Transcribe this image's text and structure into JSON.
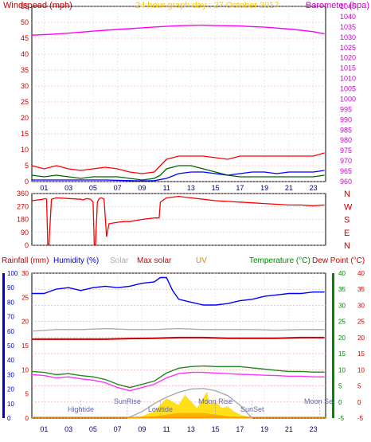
{
  "chart_data": [
    {
      "type": "line",
      "title": "24 hour graph day : 27 October 2017",
      "ylabel_left": "Windspeed (mph)",
      "ylabel_right": "Barometer (hpa)",
      "xlim": [
        0,
        24
      ],
      "x_ticks": [
        "01",
        "03",
        "05",
        "07",
        "09",
        "11",
        "13",
        "15",
        "17",
        "19",
        "21",
        "23"
      ],
      "ylim_left": [
        0,
        55
      ],
      "y_ticks_left": [
        "0",
        "5",
        "10",
        "15",
        "20",
        "25",
        "30",
        "35",
        "40",
        "45",
        "50",
        "55"
      ],
      "ylim_right": [
        960,
        1045
      ],
      "y_ticks_right": [
        "960",
        "965",
        "970",
        "975",
        "980",
        "985",
        "990",
        "995",
        "1000",
        "1005",
        "1010",
        "1015",
        "1020",
        "1025",
        "1030",
        "1035",
        "1040",
        "1045"
      ],
      "series": [
        {
          "key": "gust",
          "color": "#ff0000",
          "axis": "left",
          "x": [
            0,
            1,
            2,
            3,
            4,
            5,
            6,
            7,
            8,
            9,
            10,
            10.5,
            11,
            12,
            13,
            14,
            15,
            16,
            17,
            18,
            19,
            20,
            21,
            22,
            23,
            23.9
          ],
          "y": [
            5,
            4,
            5,
            4,
            3.5,
            4,
            4.5,
            4,
            3,
            2.5,
            3,
            5,
            7,
            8,
            8,
            8,
            7.5,
            7,
            8,
            8,
            8,
            8,
            8,
            8,
            8,
            9
          ]
        },
        {
          "key": "wind",
          "color": "#006600",
          "axis": "left",
          "x": [
            0,
            1,
            2,
            3,
            4,
            5,
            6,
            7,
            8,
            9,
            10,
            10.5,
            11,
            12,
            13,
            14,
            15,
            16,
            17,
            18,
            19,
            20,
            21,
            22,
            23,
            23.9
          ],
          "y": [
            2,
            1.5,
            2,
            1.5,
            1,
            1.5,
            1.5,
            1.5,
            1,
            0.5,
            1,
            2,
            4,
            5,
            5,
            4,
            3,
            2,
            1.5,
            1.5,
            1.5,
            1.5,
            1.5,
            1.5,
            1.5,
            2
          ]
        },
        {
          "key": "avg",
          "color": "#0000ff",
          "axis": "left",
          "x": [
            0,
            2,
            4,
            6,
            8,
            9,
            10,
            11,
            12,
            13,
            14,
            15,
            16,
            17,
            18,
            19,
            20,
            21,
            22,
            23,
            23.9
          ],
          "y": [
            0.5,
            0.5,
            0.5,
            0.5,
            0.3,
            0.2,
            0.3,
            1,
            2.5,
            3,
            3,
            2.5,
            2,
            2.5,
            3,
            3,
            2.5,
            3,
            3,
            3,
            3.5
          ]
        },
        {
          "key": "baro",
          "color": "#ff00ff",
          "axis": "right",
          "x": [
            0,
            1,
            2,
            3,
            4,
            5,
            6,
            7,
            8,
            9,
            10,
            11,
            12,
            13,
            14,
            15,
            16,
            17,
            18,
            19,
            20,
            21,
            22,
            23,
            23.9
          ],
          "y": [
            1031,
            1031.3,
            1031.6,
            1032,
            1032.5,
            1033,
            1033.4,
            1033.8,
            1034.2,
            1034.6,
            1035,
            1035.3,
            1035.6,
            1035.8,
            1035.9,
            1035.7,
            1035.6,
            1035.5,
            1035.2,
            1034.9,
            1034.5,
            1034,
            1033.4,
            1032.7,
            1031.7
          ]
        }
      ]
    },
    {
      "type": "line",
      "ylabel_left": "",
      "ylim": [
        0,
        360
      ],
      "y_ticks": [
        "0",
        "45",
        "90",
        "135",
        "180",
        "225",
        "270",
        "315",
        "360"
      ],
      "compass_labels": [
        "N",
        "W",
        "S",
        "E",
        "N"
      ],
      "series": [
        {
          "key": "direction",
          "color": "#ff0000",
          "x": [
            0,
            0.9,
            1.1,
            1.2,
            1.3,
            1.4,
            1.6,
            2,
            3,
            4,
            4.2,
            4.3,
            4.5,
            4.8,
            5,
            5.1,
            5.2,
            5.35,
            5.5,
            5.7,
            5.9,
            6.1,
            6.3,
            7,
            7.5,
            8,
            9,
            10,
            10.4,
            10.5,
            11,
            12,
            13,
            14,
            15,
            16,
            17,
            18,
            19,
            20,
            21,
            22,
            23,
            23.9
          ],
          "y": [
            310,
            320,
            325,
            320,
            5,
            5,
            320,
            330,
            325,
            320,
            315,
            320,
            325,
            320,
            300,
            5,
            5,
            300,
            325,
            330,
            320,
            60,
            150,
            160,
            165,
            165,
            180,
            190,
            190,
            300,
            330,
            340,
            330,
            320,
            310,
            305,
            300,
            295,
            290,
            285,
            280,
            280,
            275,
            280
          ]
        }
      ]
    },
    {
      "type": "line",
      "xlim": [
        0,
        24
      ],
      "x_ticks": [
        "01",
        "03",
        "05",
        "07",
        "09",
        "11",
        "13",
        "15",
        "17",
        "19",
        "21",
        "23"
      ],
      "legend": [
        "Rainfall (mm)",
        "Humidity (%)",
        "Solar",
        "Max solar",
        "UV",
        "Temperature (°C)",
        "Dew Point (°C)"
      ],
      "rainfall_ticks": [
        "0",
        "5",
        "10",
        "15",
        "20",
        "25",
        "30"
      ],
      "humidity_ticks": [
        "0",
        "10",
        "20",
        "30",
        "40",
        "50",
        "60",
        "70",
        "80",
        "90",
        "100"
      ],
      "temp_ticks_left": [
        "-5",
        "0",
        "5",
        "10",
        "15",
        "20",
        "25",
        "30",
        "35",
        "40"
      ],
      "temp_ticks_right": [
        "-5",
        "0",
        "5",
        "10",
        "15",
        "20",
        "25",
        "30",
        "35",
        "40"
      ],
      "rainfall_range": [
        0,
        30
      ],
      "humidity_range": [
        0,
        100
      ],
      "temp_range": [
        -5,
        40
      ],
      "annotations": [
        {
          "text": "Hightide",
          "x": 4
        },
        {
          "text": "SunRise",
          "x": 7.8
        },
        {
          "text": "Lowtide",
          "x": 10.5
        },
        {
          "text": "Moon Rise",
          "x": 15
        },
        {
          "text": "SunSet",
          "x": 18
        },
        {
          "text": "Moon Set",
          "x": 23.5
        }
      ],
      "series": [
        {
          "key": "humidity",
          "color": "#0000ff",
          "axis": "humidity",
          "x": [
            0,
            1,
            2,
            3,
            4,
            5,
            6,
            7,
            8,
            9,
            10,
            10.5,
            11,
            11.5,
            12,
            13,
            14,
            15,
            16,
            17,
            18,
            19,
            20,
            21,
            22,
            23,
            23.9
          ],
          "y": [
            86,
            86,
            89,
            90,
            88,
            90,
            91,
            90,
            91,
            93,
            94,
            97,
            97,
            88,
            82,
            80,
            78,
            78,
            79,
            81,
            82,
            84,
            85,
            86,
            86,
            87,
            87
          ]
        },
        {
          "key": "solar_gray",
          "color": "#aaaaaa",
          "axis": "temp",
          "x": [
            0,
            2,
            4,
            6,
            8,
            10,
            12,
            14,
            16,
            18,
            20,
            22,
            23.9
          ],
          "y": [
            22,
            22.5,
            22.5,
            22.8,
            22.5,
            22.5,
            22.8,
            22.5,
            22.5,
            22.5,
            22.3,
            22.5,
            22.5
          ]
        },
        {
          "key": "tempmax",
          "color": "#cc0000",
          "axis": "temp",
          "x": [
            0,
            2,
            4,
            6,
            8,
            10,
            12,
            14,
            16,
            18,
            20,
            22,
            23.9
          ],
          "y": [
            19.5,
            19.5,
            19.5,
            19.5,
            19.7,
            19.8,
            20.0,
            20.0,
            19.8,
            19.8,
            19.8,
            20.0,
            20.0
          ]
        },
        {
          "key": "temperature",
          "color": "#228822",
          "axis": "temp",
          "x": [
            0,
            1,
            2,
            3,
            4,
            5,
            6,
            7,
            8,
            9,
            10,
            11,
            12,
            13,
            14,
            15,
            16,
            17,
            18,
            19,
            20,
            21,
            22,
            23,
            23.9
          ],
          "y": [
            9.5,
            9.2,
            8.5,
            8.8,
            8.2,
            7.8,
            7.0,
            5.5,
            4.5,
            5.5,
            6.5,
            9.0,
            10.5,
            11.0,
            11.2,
            11.0,
            11.0,
            11.0,
            10.6,
            10.2,
            9.8,
            9.5,
            9.5,
            9.3,
            9.3
          ]
        },
        {
          "key": "dewpoint",
          "color": "#ff33ff",
          "axis": "temp",
          "x": [
            0,
            1,
            2,
            3,
            4,
            5,
            6,
            7,
            8,
            9,
            10,
            11,
            12,
            13,
            14,
            15,
            16,
            17,
            18,
            19,
            20,
            21,
            22,
            23,
            23.9
          ],
          "y": [
            8.5,
            8.2,
            7.5,
            7.8,
            7.2,
            6.8,
            6.0,
            4.5,
            3.5,
            4.5,
            5.5,
            7.5,
            8.8,
            9.2,
            9.2,
            9.0,
            8.8,
            8.6,
            8.5,
            8.3,
            8.2,
            8.0,
            8.0,
            7.8,
            7.8
          ]
        },
        {
          "key": "maxsolar",
          "color": "#aaaaaa",
          "axis": "temp",
          "x": [
            7.8,
            9,
            10,
            11,
            12,
            13,
            14,
            15,
            16,
            17,
            18
          ],
          "y": [
            -5,
            -3,
            -0.5,
            1.5,
            3.0,
            4.0,
            4.2,
            3.5,
            2.0,
            -1,
            -5
          ]
        },
        {
          "key": "solar",
          "color": "#ffdd00",
          "axis": "temp",
          "x": [
            7.8,
            9,
            10,
            10.5,
            11,
            11.5,
            12,
            12.5,
            13,
            13.5,
            14,
            14.3,
            14.5,
            15,
            15.5,
            16,
            16.5,
            17,
            18
          ],
          "y": [
            -5,
            -4.5,
            -3,
            -1,
            1,
            0,
            -1,
            2,
            0,
            -2,
            1,
            3,
            -1,
            0,
            -2,
            -1.5,
            -3,
            -4,
            -5
          ]
        },
        {
          "key": "uv",
          "color": "#ffaa00",
          "axis": "temp",
          "x": [
            8,
            10,
            11,
            12,
            13,
            14,
            15,
            16,
            17,
            18
          ],
          "y": [
            -5,
            -4.5,
            -4.0,
            -3.5,
            -3.5,
            -3.5,
            -4,
            -4.5,
            -4.8,
            -5
          ]
        }
      ]
    }
  ]
}
